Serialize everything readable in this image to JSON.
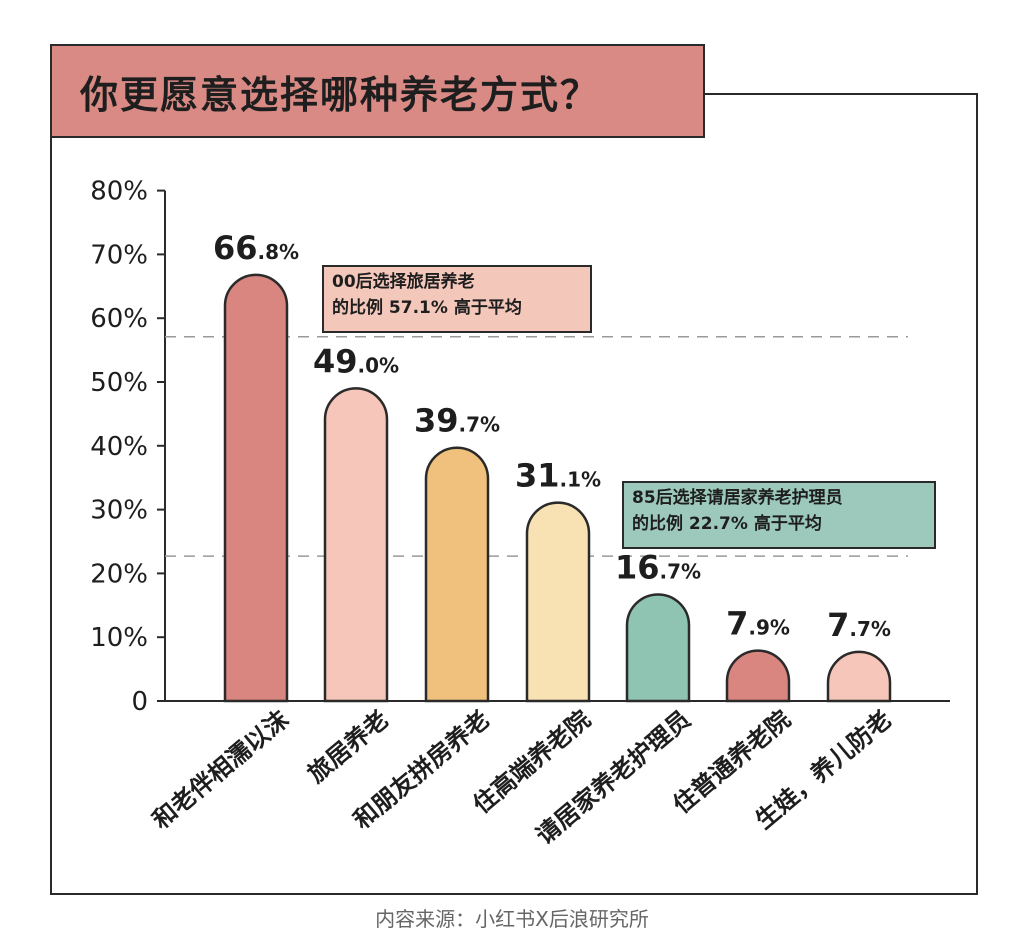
{
  "title": "你更愿意选择哪种养老方式？",
  "source": "内容来源：小红书X后浪研究所",
  "callouts": [
    {
      "line1": "00后选择旅居养老",
      "line2": "的比例 57.1% 高于平均",
      "ref_value": 57.1,
      "color": "#f4c7bb"
    },
    {
      "line1": "85后选择请居家养老护理员",
      "line2": "的比例 22.7% 高于平均",
      "ref_value": 22.7,
      "color": "#9cc9bb"
    }
  ],
  "chart_data": {
    "type": "bar",
    "title": "你更愿意选择哪种养老方式？",
    "categories": [
      "和老伴相濡以沫",
      "旅居养老",
      "和朋友拼房养老",
      "住高端养老院",
      "请居家养老护理员",
      "住普通养老院",
      "生娃，养儿防老"
    ],
    "values": [
      66.8,
      49.0,
      39.7,
      31.1,
      16.7,
      7.9,
      7.7
    ],
    "value_labels": [
      {
        "int": "66",
        "dec": ".8%"
      },
      {
        "int": "49",
        "dec": ".0%"
      },
      {
        "int": "39",
        "dec": ".7%"
      },
      {
        "int": "31",
        "dec": ".1%"
      },
      {
        "int": "16",
        "dec": ".7%"
      },
      {
        "int": "7",
        "dec": ".9%"
      },
      {
        "int": "7",
        "dec": ".7%"
      }
    ],
    "colors": [
      "#d98580",
      "#f5c6b9",
      "#f0c17c",
      "#f8e2b3",
      "#8fc4b3",
      "#d98580",
      "#f5c6b9"
    ],
    "ylim": [
      0,
      80
    ],
    "yticks": [
      "0",
      "10%",
      "20%",
      "30%",
      "40%",
      "50%",
      "60%",
      "70%",
      "80%"
    ],
    "reference_lines": [
      57.1,
      22.7
    ],
    "grid": true
  }
}
